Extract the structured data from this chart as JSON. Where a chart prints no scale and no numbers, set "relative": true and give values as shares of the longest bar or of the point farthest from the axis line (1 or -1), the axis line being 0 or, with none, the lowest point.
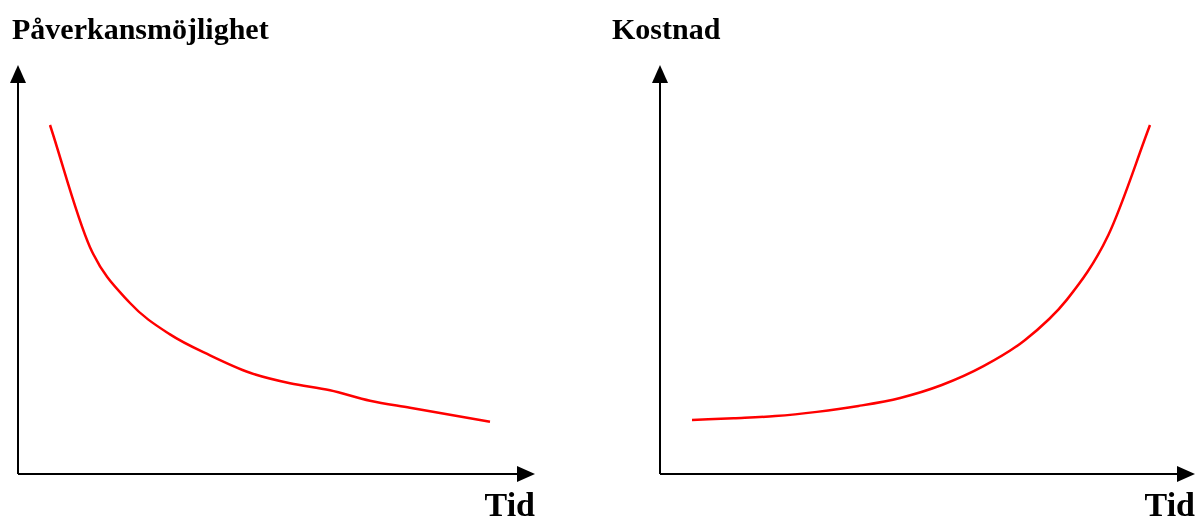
{
  "chart_data": [
    {
      "type": "line",
      "ylabel": "Påverkansmöjlighet",
      "xlabel": "Tid",
      "relative": true,
      "categories": [
        null,
        null,
        null,
        null,
        null,
        null,
        null,
        null,
        null,
        null,
        null,
        null
      ],
      "series": [
        {
          "color": "#ff0000",
          "values": [
            1,
            0.65,
            0.49,
            0.4,
            0.34,
            0.29,
            0.26,
            0.24,
            0.21,
            0.19,
            0.17,
            0.15
          ]
        }
      ]
    },
    {
      "type": "line",
      "ylabel": "Kostnad",
      "xlabel": "Tid",
      "relative": true,
      "categories": [
        null,
        null,
        null,
        null,
        null,
        null,
        null,
        null,
        null,
        null,
        null,
        null
      ],
      "series": [
        {
          "color": "#ff0000",
          "values": [
            0.155,
            0.16,
            0.166,
            0.178,
            0.195,
            0.218,
            0.255,
            0.309,
            0.384,
            0.499,
            0.685,
            1
          ]
        }
      ]
    }
  ]
}
